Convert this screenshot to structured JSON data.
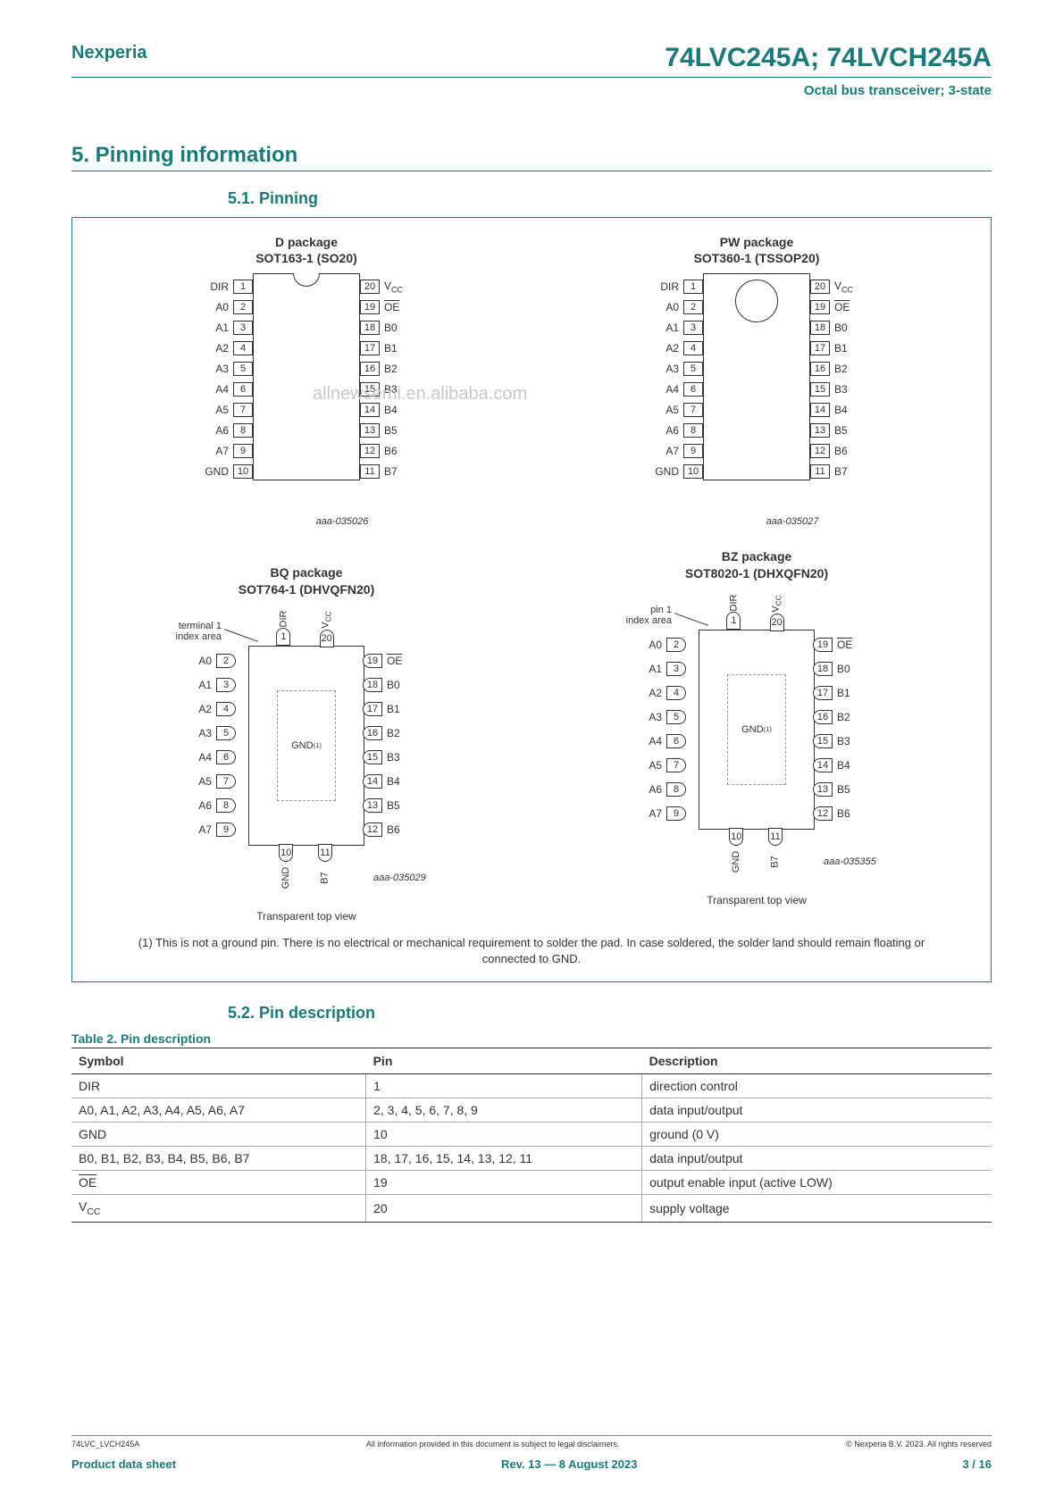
{
  "header": {
    "brand": "Nexperia",
    "part": "74LVC245A; 74LVCH245A",
    "subtitle": "Octal bus transceiver; 3-state"
  },
  "sections": {
    "main": "5.  Pinning information",
    "sub1": "5.1.  Pinning",
    "sub2": "5.2.  Pin description"
  },
  "packages": {
    "d": {
      "line1": "D package",
      "line2": "SOT163-1 (SO20)",
      "ref": "aaa-035026"
    },
    "pw": {
      "line1": "PW package",
      "line2": "SOT360-1 (TSSOP20)",
      "ref": "aaa-035027"
    },
    "bq": {
      "line1": "BQ package",
      "line2": "SOT764-1 (DHVQFN20)",
      "ref": "aaa-035029",
      "caption": "Transparent top view",
      "idx": "terminal 1\nindex area"
    },
    "bz": {
      "line1": "BZ package",
      "line2": "SOT8020-1 (DHXQFN20)",
      "ref": "aaa-035355",
      "caption": "Transparent top view",
      "idx": "pin 1\nindex area"
    }
  },
  "soic_pins": {
    "left": [
      "DIR",
      "A0",
      "A1",
      "A2",
      "A3",
      "A4",
      "A5",
      "A6",
      "A7",
      "GND"
    ],
    "leftnum": [
      "1",
      "2",
      "3",
      "4",
      "5",
      "6",
      "7",
      "8",
      "9",
      "10"
    ],
    "right": [
      "V",
      "OE",
      "B0",
      "B1",
      "B2",
      "B3",
      "B4",
      "B5",
      "B6",
      "B7"
    ],
    "rightnum": [
      "20",
      "19",
      "18",
      "17",
      "16",
      "15",
      "14",
      "13",
      "12",
      "11"
    ]
  },
  "qfn": {
    "top_labels": [
      "DIR",
      "V"
    ],
    "top_nums": [
      "1",
      "20"
    ],
    "left_labels": [
      "A0",
      "A1",
      "A2",
      "A3",
      "A4",
      "A5",
      "A6",
      "A7"
    ],
    "left_nums": [
      "2",
      "3",
      "4",
      "5",
      "6",
      "7",
      "8",
      "9"
    ],
    "right_labels": [
      "OE",
      "B0",
      "B1",
      "B2",
      "B3",
      "B4",
      "B5"
    ],
    "right_nums": [
      "19",
      "18",
      "17",
      "16",
      "15",
      "14",
      "13",
      "12"
    ],
    "right_last": "B6",
    "bot_labels": [
      "GND",
      "B7"
    ],
    "bot_nums": [
      "10",
      "11"
    ],
    "center": "GND"
  },
  "footnote": "(1) This is not a ground pin. There is no electrical or mechanical requirement to solder the pad. In case soldered, the solder land should remain floating or connected to GND.",
  "table": {
    "title": "Table 2. Pin description",
    "headers": [
      "Symbol",
      "Pin",
      "Description"
    ],
    "rows": [
      [
        "DIR",
        "1",
        "direction control"
      ],
      [
        "A0, A1, A2, A3, A4, A5, A6, A7",
        "2, 3, 4, 5, 6, 7, 8, 9",
        "data input/output"
      ],
      [
        "GND",
        "10",
        "ground (0 V)"
      ],
      [
        "B0, B1, B2, B3, B4, B5, B6, B7",
        "18, 17, 16, 15, 14, 13, 12, 11",
        "data input/output"
      ],
      [
        "OE",
        "19",
        "output enable input (active LOW)"
      ],
      [
        "V",
        "20",
        "supply voltage"
      ]
    ],
    "overline_rows": [
      4
    ],
    "vcc_rows": [
      5
    ]
  },
  "watermark": "allnewsemi.en.alibaba.com",
  "footer": {
    "doc": "74LVC_LVCH245A",
    "disclaimer": "All information provided in this document is subject to legal disclaimers.",
    "copyright": "© Nexperia B.V. 2023. All rights reserved",
    "type": "Product data sheet",
    "rev": "Rev. 13 — 8 August 2023",
    "page": "3 / 16"
  },
  "colors": {
    "teal": "#1a7a7a",
    "text": "#333333"
  }
}
